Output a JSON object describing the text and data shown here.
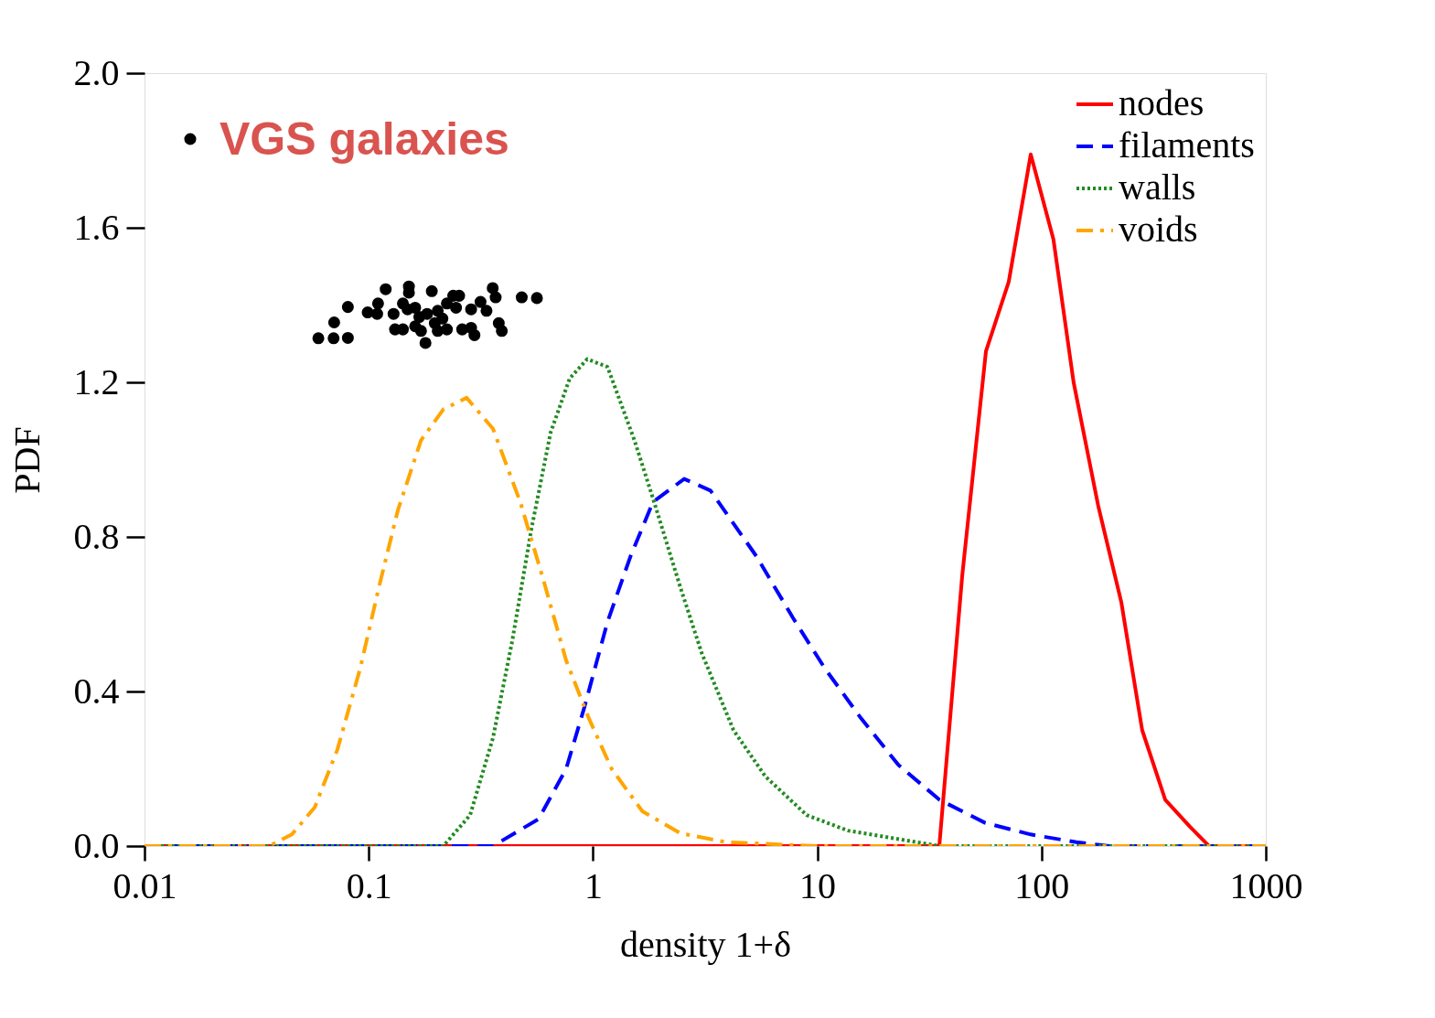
{
  "chart_data": {
    "type": "line",
    "xlabel": "density 1+δ",
    "ylabel": "PDF",
    "log": "x",
    "legend": "top right",
    "xlim": [
      0.01,
      1000
    ],
    "ylim": [
      0,
      2.0
    ],
    "xticks": [
      0.01,
      0.1,
      1,
      10,
      100,
      1000
    ],
    "yticks": [
      {
        "value": 0,
        "label": "0.0"
      },
      0.4,
      0.8,
      1.2,
      1.6,
      {
        "value": 2.0,
        "label": "2.0"
      }
    ],
    "grid": false,
    "series": [
      {
        "name": "nodes",
        "color": "#ff0000",
        "line_style": "solid",
        "x": [
          0.01,
          35.0,
          44.3,
          56.5,
          71.4,
          89.5,
          113,
          139,
          179,
          227,
          281,
          356,
          459,
          558,
          1000
        ],
        "values": [
          0,
          0,
          0.7,
          1.28,
          1.46,
          1.79,
          1.57,
          1.2,
          0.88,
          0.63,
          0.3,
          0.12,
          0.05,
          0,
          0
        ]
      },
      {
        "name": "filaments",
        "color": "#0000ff",
        "line_style": "dashed",
        "x": [
          0.01,
          0.358,
          0.572,
          0.759,
          0.916,
          1.16,
          1.47,
          1.85,
          2.55,
          3.34,
          5.35,
          7.8,
          10.8,
          15.7,
          23.0,
          35.0,
          56.0,
          89.5,
          143,
          200,
          1000
        ],
        "values": [
          0,
          0,
          0.07,
          0.2,
          0.36,
          0.58,
          0.75,
          0.89,
          0.95,
          0.92,
          0.75,
          0.59,
          0.46,
          0.33,
          0.21,
          0.12,
          0.06,
          0.03,
          0.01,
          0,
          0
        ]
      },
      {
        "name": "walls",
        "color": "#228b22",
        "line_style": "dotted",
        "x": [
          0.01,
          0.215,
          0.283,
          0.358,
          0.436,
          0.531,
          0.647,
          0.787,
          0.942,
          1.16,
          1.53,
          1.85,
          2.45,
          3.05,
          4.23,
          5.87,
          8.97,
          13.7,
          21.9,
          35.0,
          1000
        ],
        "values": [
          0,
          0,
          0.08,
          0.28,
          0.53,
          0.82,
          1.07,
          1.21,
          1.26,
          1.24,
          1.05,
          0.9,
          0.67,
          0.5,
          0.3,
          0.18,
          0.08,
          0.04,
          0.02,
          0,
          0
        ]
      },
      {
        "name": "voids",
        "color": "#ffa500",
        "line_style": "dashdot",
        "x": [
          0.01,
          0.0359,
          0.0454,
          0.0574,
          0.0725,
          0.0916,
          0.111,
          0.135,
          0.171,
          0.215,
          0.273,
          0.358,
          0.474,
          0.6,
          0.759,
          0.959,
          1.21,
          1.66,
          2.45,
          3.93,
          10,
          1000
        ],
        "values": [
          0,
          0,
          0.03,
          0.1,
          0.25,
          0.46,
          0.67,
          0.87,
          1.05,
          1.13,
          1.16,
          1.08,
          0.89,
          0.69,
          0.48,
          0.33,
          0.2,
          0.09,
          0.033,
          0.01,
          0,
          0
        ]
      },
      {
        "name": "VGS galaxies",
        "type": "scatter",
        "marker": "circle",
        "color": "#000000",
        "x": [
          0.0596,
          0.0697,
          0.0807,
          0.0701,
          0.0807,
          0.0989,
          0.109,
          0.11,
          0.119,
          0.129,
          0.151,
          0.151,
          0.131,
          0.142,
          0.142,
          0.161,
          0.161,
          0.171,
          0.179,
          0.182,
          0.191,
          0.182,
          0.203,
          0.197,
          0.213,
          0.223,
          0.223,
          0.238,
          0.253,
          0.245,
          0.261,
          0.286,
          0.296,
          0.286,
          0.315,
          0.325,
          0.335,
          0.357,
          0.368,
          0.38,
          0.392,
          0.481,
          0.562,
          0.203,
          0.168,
          0.149
        ],
        "values": [
          1.314,
          1.314,
          1.315,
          1.355,
          1.395,
          1.381,
          1.377,
          1.404,
          1.441,
          1.377,
          1.448,
          1.432,
          1.337,
          1.337,
          1.404,
          1.393,
          1.345,
          1.333,
          1.302,
          null,
          1.436,
          1.377,
          1.385,
          1.353,
          1.365,
          1.337,
          1.404,
          1.424,
          1.424,
          1.393,
          1.337,
          1.341,
          1.322,
          1.389,
          1.408,
          null,
          1.385,
          1.444,
          1.42,
          1.353,
          1.333,
          1.42,
          1.418,
          1.333,
          1.369,
          1.389
        ]
      }
    ]
  }
}
